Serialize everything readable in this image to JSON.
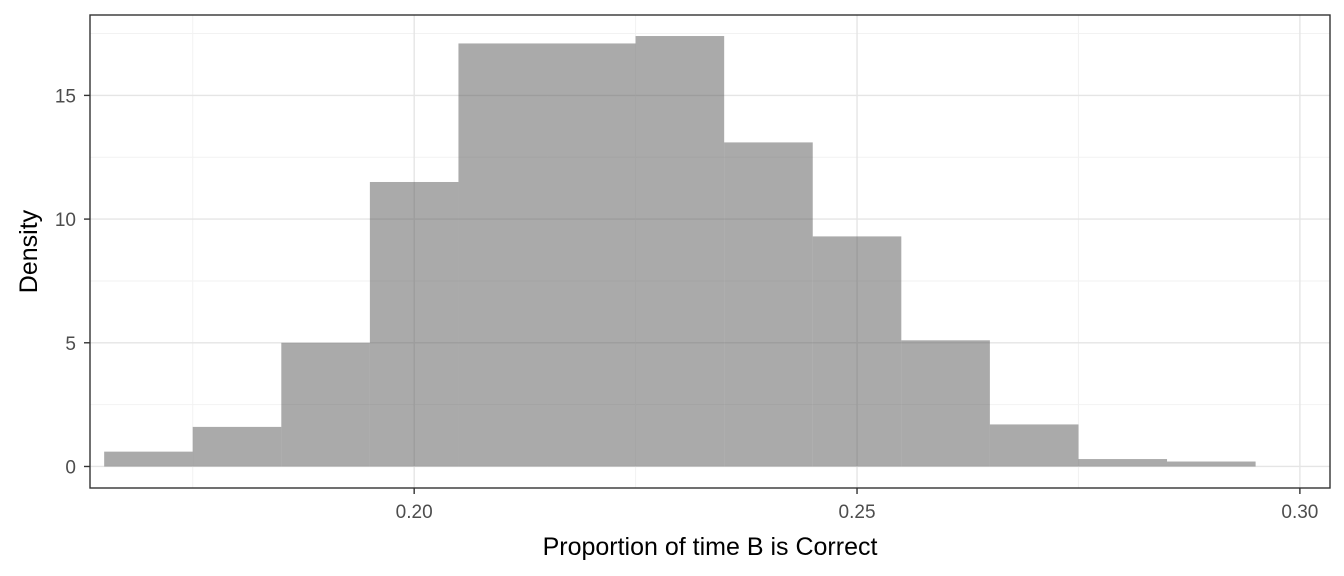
{
  "chart_data": {
    "type": "histogram",
    "xlabel": "Proportion of time B is Correct",
    "ylabel": "Density",
    "xlim": [
      0.1634,
      0.3034
    ],
    "ylim": [
      -0.87,
      18.25
    ],
    "x_ticks": [
      0.2,
      0.25,
      0.3
    ],
    "x_tick_labels": [
      "0.20",
      "0.25",
      "0.30"
    ],
    "x_minor_ticks": [
      0.175,
      0.225,
      0.275
    ],
    "y_ticks": [
      0,
      5,
      10,
      15
    ],
    "y_tick_labels": [
      "0",
      "5",
      "10",
      "15"
    ],
    "y_minor_ticks": [
      2.5,
      7.5,
      12.5,
      17.5
    ],
    "grid": true,
    "bin_width": 0.01,
    "bins": [
      {
        "x0": 0.165,
        "x1": 0.175,
        "value": 0.6
      },
      {
        "x0": 0.175,
        "x1": 0.185,
        "value": 1.6
      },
      {
        "x0": 0.185,
        "x1": 0.195,
        "value": 5.0
      },
      {
        "x0": 0.195,
        "x1": 0.205,
        "value": 11.5
      },
      {
        "x0": 0.205,
        "x1": 0.215,
        "value": 17.1
      },
      {
        "x0": 0.215,
        "x1": 0.225,
        "value": 17.1
      },
      {
        "x0": 0.225,
        "x1": 0.235,
        "value": 17.4
      },
      {
        "x0": 0.235,
        "x1": 0.245,
        "value": 13.1
      },
      {
        "x0": 0.245,
        "x1": 0.255,
        "value": 9.3
      },
      {
        "x0": 0.255,
        "x1": 0.265,
        "value": 5.1
      },
      {
        "x0": 0.265,
        "x1": 0.275,
        "value": 1.7
      },
      {
        "x0": 0.275,
        "x1": 0.285,
        "value": 0.3
      },
      {
        "x0": 0.285,
        "x1": 0.295,
        "value": 0.2
      }
    ],
    "colors": {
      "bar_fill": "#555555",
      "bar_opacity": 0.5,
      "panel_border": "#333333",
      "grid_major": "#e5e5e5",
      "grid_minor": "#f2f2f2",
      "tick_label": "#4d4d4d",
      "axis_title": "#000000"
    }
  }
}
